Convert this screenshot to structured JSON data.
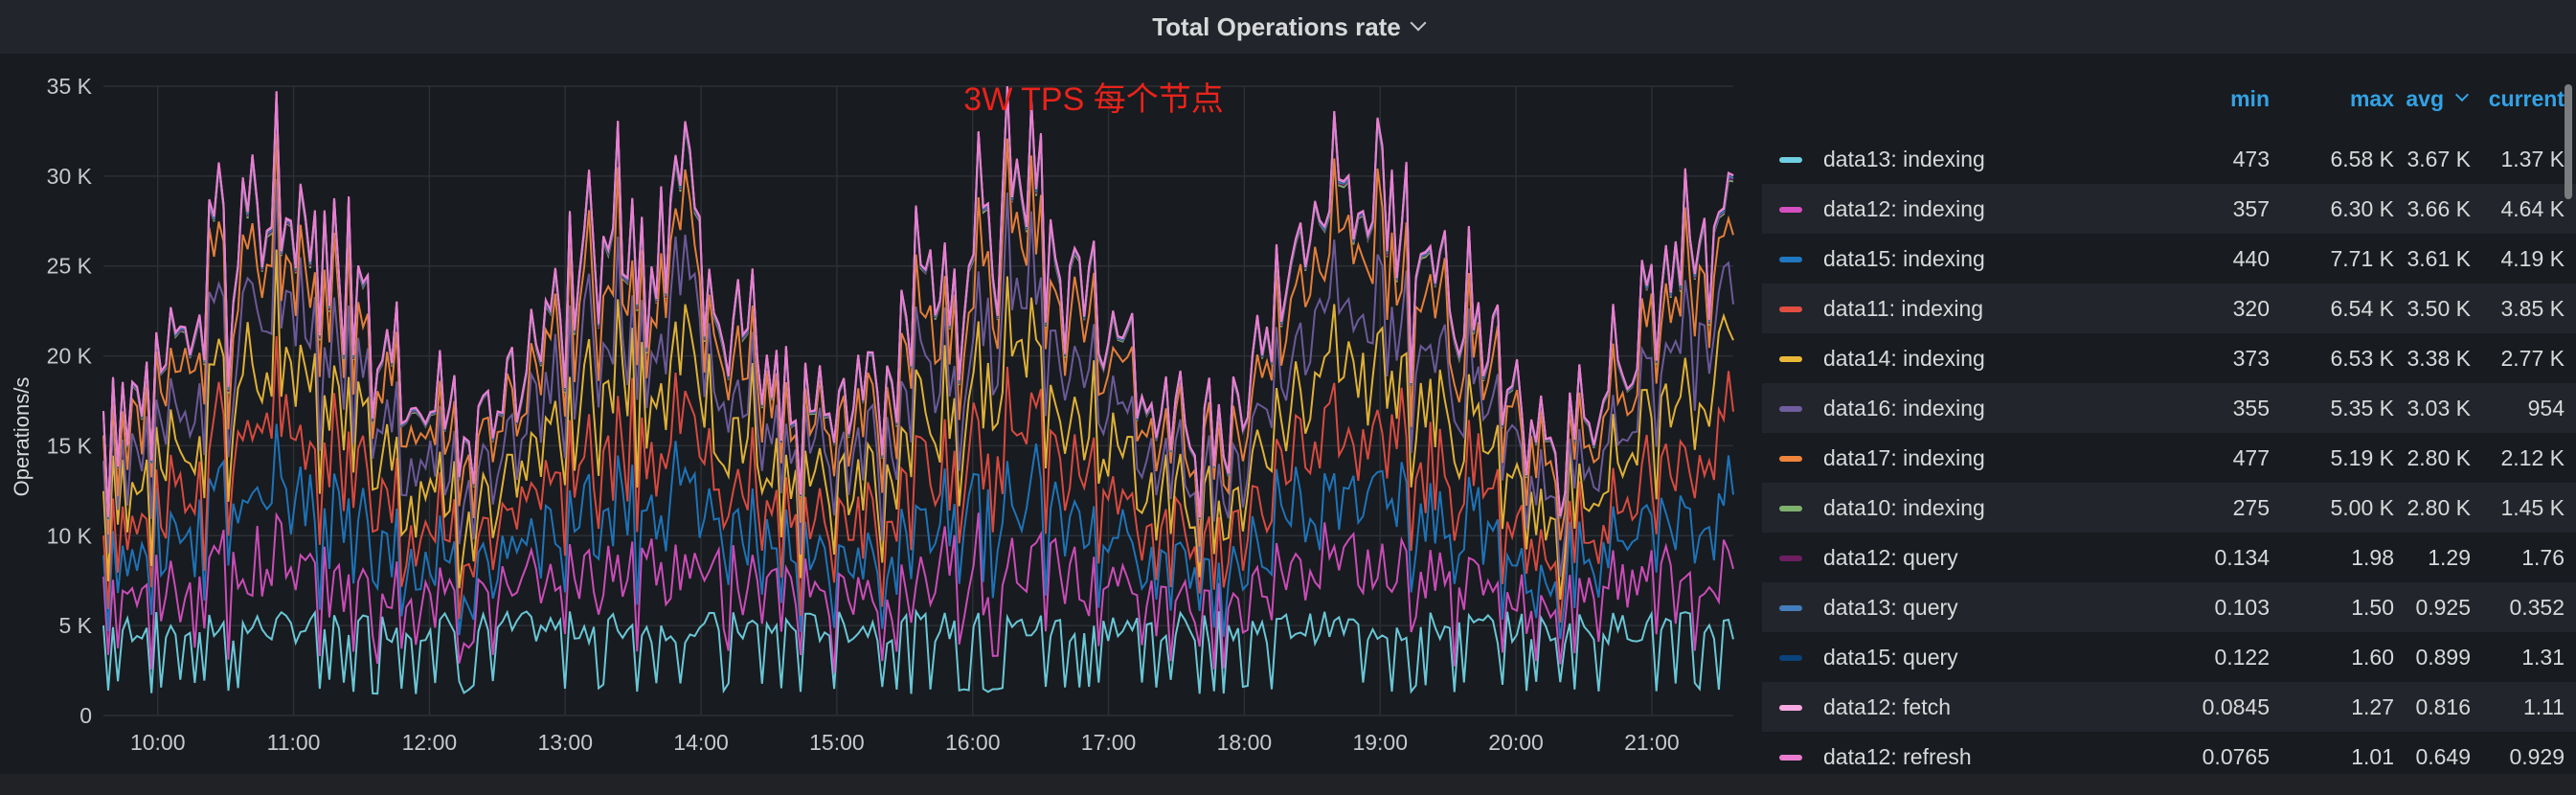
{
  "panel": {
    "title": "Total Operations rate"
  },
  "chart_data": {
    "type": "line",
    "ylabel": "Operations/s",
    "yticks": [
      "0",
      "5 K",
      "10 K",
      "15 K",
      "20 K",
      "25 K",
      "30 K",
      "35 K"
    ],
    "ylim": [
      0,
      35000
    ],
    "xticks": [
      "10:00",
      "11:00",
      "12:00",
      "13:00",
      "14:00",
      "15:00",
      "16:00",
      "17:00",
      "18:00",
      "19:00",
      "20:00",
      "21:00"
    ],
    "xlim_hours": [
      9.6,
      21.6
    ],
    "annotation": "3W TPS 每个节点",
    "stacked": true,
    "grid": true,
    "legend_position": "right",
    "series": [
      {
        "name": "data13: indexing",
        "color": "#6ed0e0",
        "min": "473",
        "max": "6.58 K",
        "avg": "3.67 K",
        "current": "1.37 K"
      },
      {
        "name": "data12: indexing",
        "color": "#d44fc0",
        "min": "357",
        "max": "6.30 K",
        "avg": "3.66 K",
        "current": "4.64 K"
      },
      {
        "name": "data15: indexing",
        "color": "#1f78c1",
        "min": "440",
        "max": "7.71 K",
        "avg": "3.61 K",
        "current": "4.19 K"
      },
      {
        "name": "data11: indexing",
        "color": "#e24d42",
        "min": "320",
        "max": "6.54 K",
        "avg": "3.50 K",
        "current": "3.85 K"
      },
      {
        "name": "data14: indexing",
        "color": "#eab839",
        "min": "373",
        "max": "6.53 K",
        "avg": "3.38 K",
        "current": "2.77 K"
      },
      {
        "name": "data16: indexing",
        "color": "#705da0",
        "min": "355",
        "max": "5.35 K",
        "avg": "3.03 K",
        "current": "954"
      },
      {
        "name": "data17: indexing",
        "color": "#ef843c",
        "min": "477",
        "max": "5.19 K",
        "avg": "2.80 K",
        "current": "2.12 K"
      },
      {
        "name": "data10: indexing",
        "color": "#7eb26d",
        "min": "275",
        "max": "5.00 K",
        "avg": "2.80 K",
        "current": "1.45 K"
      },
      {
        "name": "data12: query",
        "color": "#6d1f62",
        "min": "0.134",
        "max": "1.98",
        "avg": "1.29",
        "current": "1.76"
      },
      {
        "name": "data13: query",
        "color": "#447ebc",
        "min": "0.103",
        "max": "1.50",
        "avg": "0.925",
        "current": "0.352"
      },
      {
        "name": "data15: query",
        "color": "#0a437c",
        "min": "0.122",
        "max": "1.60",
        "avg": "0.899",
        "current": "1.31"
      },
      {
        "name": "data12: fetch",
        "color": "#f9a9e1",
        "min": "0.0845",
        "max": "1.27",
        "avg": "0.816",
        "current": "1.11"
      },
      {
        "name": "data12: refresh",
        "color": "#e97ccf",
        "min": "0.0765",
        "max": "1.01",
        "avg": "0.649",
        "current": "0.929"
      }
    ]
  },
  "legend": {
    "headers": {
      "min": "min",
      "max": "max",
      "avg": "avg",
      "current": "current"
    },
    "sorted_by": "avg"
  }
}
